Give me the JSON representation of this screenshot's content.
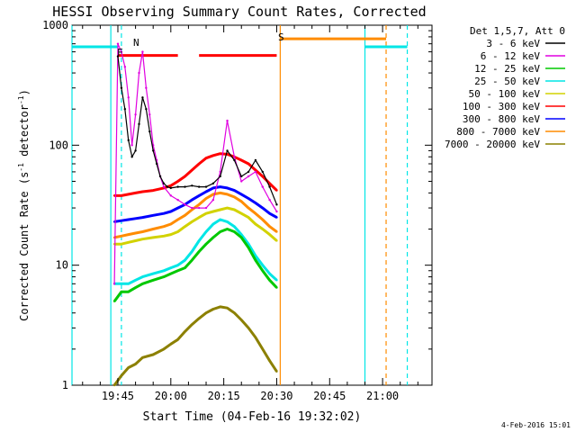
{
  "chart_data": {
    "type": "line",
    "title": "HESSI Observing Summary Count Rates, Corrected",
    "xlabel": "Start Time (04-Feb-16 19:32:02)",
    "ylabel_main": "Corrected Count Rate (s",
    "ylabel_sup1": "-1",
    "ylabel_mid": " detector",
    "ylabel_sup2": "-1",
    "ylabel_end": ")",
    "y_scale": "log",
    "ylim": [
      1,
      1000
    ],
    "xlim": [
      "19:32",
      "21:14"
    ],
    "x_ticks": [
      "19:45",
      "20:00",
      "20:15",
      "20:30",
      "20:45",
      "21:00"
    ],
    "y_ticks": [
      "1",
      "10",
      "100",
      "1000"
    ],
    "footer_date": "4-Feb-2016 15:01",
    "legend": {
      "header": "Det 1,5,7, Att 0",
      "placement": "top-right, outside plot",
      "entries": [
        {
          "label": "3 - 6 keV",
          "color": "#000000"
        },
        {
          "label": "6 - 12 keV",
          "color": "#e000e0"
        },
        {
          "label": "12 - 25 keV",
          "color": "#00c800"
        },
        {
          "label": "25 - 50 keV",
          "color": "#00e6e6"
        },
        {
          "label": "50 - 100 keV",
          "color": "#d2d200"
        },
        {
          "label": "100 - 300 keV",
          "color": "#ff0000"
        },
        {
          "label": "300 - 800 keV",
          "color": "#0000ff"
        },
        {
          "label": "800 - 7000 keV",
          "color": "#ff8c00"
        },
        {
          "label": "7000 - 20000 keV",
          "color": "#8c8000"
        }
      ]
    },
    "annotations": {
      "flare_label": "F",
      "saa_label": "S",
      "night_label": "N",
      "flare_color": "#ff0000",
      "saa_color": "#ff8c00",
      "night_color": "#00e6e6",
      "flare_bars": [
        [
          "19:45",
          "20:02"
        ],
        [
          "20:08",
          "20:30"
        ]
      ],
      "saa_bar": [
        "20:31",
        "21:01"
      ],
      "night_bars": [
        [
          "19:32",
          "19:45"
        ],
        [
          "20:55",
          "21:07"
        ]
      ],
      "vertical_lines": [
        {
          "time": "19:32",
          "color": "#00e6e6",
          "style": "solid"
        },
        {
          "time": "19:43",
          "color": "#00e6e6",
          "style": "solid"
        },
        {
          "time": "19:46",
          "color": "#00e6e6",
          "style": "dashed"
        },
        {
          "time": "20:31",
          "color": "#ff8c00",
          "style": "solid"
        },
        {
          "time": "20:55",
          "color": "#00e6e6",
          "style": "solid"
        },
        {
          "time": "21:01",
          "color": "#ff8c00",
          "style": "dashed"
        },
        {
          "time": "21:07",
          "color": "#00e6e6",
          "style": "dashed"
        }
      ]
    },
    "series": [
      {
        "name": "3 - 6 keV",
        "color": "#000000",
        "x": [
          "19:45",
          "19:46",
          "19:47",
          "19:48",
          "19:49",
          "19:50",
          "19:51",
          "19:52",
          "19:53",
          "19:54",
          "19:55",
          "19:56",
          "19:57",
          "19:58",
          "19:59",
          "20:00",
          "20:02",
          "20:04",
          "20:06",
          "20:08",
          "20:10",
          "20:12",
          "20:14",
          "20:16",
          "20:18",
          "20:20",
          "20:22",
          "20:24",
          "20:26",
          "20:28",
          "20:30"
        ],
        "y": [
          550,
          300,
          200,
          110,
          80,
          90,
          150,
          250,
          200,
          130,
          90,
          70,
          55,
          48,
          45,
          44,
          45,
          45,
          46,
          45,
          45,
          48,
          55,
          90,
          75,
          55,
          60,
          75,
          60,
          45,
          32
        ]
      },
      {
        "name": "6 - 12 keV",
        "color": "#e000e0",
        "x": [
          "19:44",
          "19:45",
          "19:46",
          "19:47",
          "19:48",
          "19:49",
          "19:50",
          "19:51",
          "19:52",
          "19:53",
          "19:54",
          "19:55",
          "19:56",
          "19:57",
          "19:58",
          "20:00",
          "20:02",
          "20:04",
          "20:06",
          "20:08",
          "20:10",
          "20:12",
          "20:14",
          "20:16",
          "20:18",
          "20:20",
          "20:22",
          "20:24",
          "20:26",
          "20:28",
          "20:30"
        ],
        "y": [
          7,
          700,
          600,
          450,
          250,
          100,
          180,
          400,
          600,
          300,
          180,
          100,
          75,
          55,
          45,
          38,
          35,
          32,
          30,
          30,
          30,
          35,
          60,
          160,
          80,
          50,
          55,
          60,
          45,
          35,
          28
        ]
      },
      {
        "name": "12 - 25 keV",
        "color": "#00c800",
        "x": [
          "19:44",
          "19:46",
          "19:48",
          "19:50",
          "19:52",
          "19:55",
          "19:58",
          "20:00",
          "20:02",
          "20:04",
          "20:06",
          "20:08",
          "20:10",
          "20:12",
          "20:14",
          "20:16",
          "20:18",
          "20:20",
          "20:22",
          "20:24",
          "20:26",
          "20:28",
          "20:30"
        ],
        "y": [
          5,
          6,
          6,
          6.5,
          7,
          7.5,
          8,
          8.5,
          9,
          9.5,
          11,
          13,
          15,
          17,
          19,
          20,
          19,
          17,
          14,
          11,
          9,
          7.5,
          6.5
        ]
      },
      {
        "name": "25 - 50 keV",
        "color": "#00e6e6",
        "x": [
          "19:44",
          "19:46",
          "19:48",
          "19:50",
          "19:52",
          "19:55",
          "19:58",
          "20:00",
          "20:02",
          "20:04",
          "20:06",
          "20:08",
          "20:10",
          "20:12",
          "20:14",
          "20:16",
          "20:18",
          "20:20",
          "20:22",
          "20:24",
          "20:26",
          "20:28",
          "20:30"
        ],
        "y": [
          7,
          7,
          7,
          7.5,
          8,
          8.5,
          9,
          9.5,
          10,
          11,
          13,
          16,
          19,
          22,
          24,
          23,
          21,
          18,
          15,
          12,
          10,
          8.5,
          7.5
        ]
      },
      {
        "name": "50 - 100 keV",
        "color": "#d2d200",
        "x": [
          "19:44",
          "19:46",
          "19:48",
          "19:50",
          "19:52",
          "19:55",
          "19:58",
          "20:00",
          "20:02",
          "20:04",
          "20:06",
          "20:08",
          "20:10",
          "20:12",
          "20:14",
          "20:16",
          "20:18",
          "20:20",
          "20:22",
          "20:24",
          "20:26",
          "20:28",
          "20:30"
        ],
        "y": [
          15,
          15,
          15.5,
          16,
          16.5,
          17,
          17.5,
          18,
          19,
          21,
          23,
          25,
          27,
          28,
          29,
          30,
          29,
          27,
          25,
          22,
          20,
          18,
          16
        ]
      },
      {
        "name": "100 - 300 keV",
        "color": "#ff0000",
        "x": [
          "19:44",
          "19:46",
          "19:48",
          "19:50",
          "19:52",
          "19:55",
          "19:58",
          "20:00",
          "20:02",
          "20:04",
          "20:06",
          "20:08",
          "20:10",
          "20:12",
          "20:14",
          "20:16",
          "20:18",
          "20:20",
          "20:22",
          "20:24",
          "20:26",
          "20:28",
          "20:30"
        ],
        "y": [
          38,
          38,
          39,
          40,
          41,
          42,
          44,
          46,
          50,
          55,
          62,
          70,
          78,
          82,
          85,
          84,
          80,
          75,
          70,
          62,
          55,
          48,
          42
        ]
      },
      {
        "name": "300 - 800 keV",
        "color": "#0000ff",
        "x": [
          "19:44",
          "19:46",
          "19:48",
          "19:50",
          "19:52",
          "19:55",
          "19:58",
          "20:00",
          "20:02",
          "20:04",
          "20:06",
          "20:08",
          "20:10",
          "20:12",
          "20:14",
          "20:16",
          "20:18",
          "20:20",
          "20:22",
          "20:24",
          "20:26",
          "20:28",
          "20:30"
        ],
        "y": [
          23,
          23.5,
          24,
          24.5,
          25,
          26,
          27,
          28,
          30,
          32,
          35,
          38,
          41,
          44,
          45,
          44,
          42,
          39,
          36,
          33,
          30,
          27,
          25
        ]
      },
      {
        "name": "800 - 7000 keV",
        "color": "#ff8c00",
        "x": [
          "19:44",
          "19:46",
          "19:48",
          "19:50",
          "19:52",
          "19:55",
          "19:58",
          "20:00",
          "20:02",
          "20:04",
          "20:06",
          "20:08",
          "20:10",
          "20:12",
          "20:14",
          "20:16",
          "20:18",
          "20:20",
          "20:22",
          "20:24",
          "20:26",
          "20:28",
          "20:30"
        ],
        "y": [
          17,
          17.5,
          18,
          18.5,
          19,
          20,
          21,
          22,
          24,
          26,
          29,
          32,
          36,
          39,
          40,
          39,
          37,
          34,
          30,
          27,
          24,
          21,
          19
        ]
      },
      {
        "name": "7000 - 20000 keV",
        "color": "#8c8000",
        "x": [
          "19:44",
          "19:46",
          "19:48",
          "19:50",
          "19:52",
          "19:55",
          "19:58",
          "20:00",
          "20:02",
          "20:04",
          "20:06",
          "20:08",
          "20:10",
          "20:12",
          "20:14",
          "20:16",
          "20:18",
          "20:20",
          "20:22",
          "20:24",
          "20:26",
          "20:28",
          "20:30"
        ],
        "y": [
          1,
          1.2,
          1.4,
          1.5,
          1.7,
          1.8,
          2,
          2.2,
          2.4,
          2.8,
          3.2,
          3.6,
          4,
          4.3,
          4.5,
          4.4,
          4,
          3.5,
          3,
          2.5,
          2,
          1.6,
          1.3
        ]
      }
    ]
  }
}
